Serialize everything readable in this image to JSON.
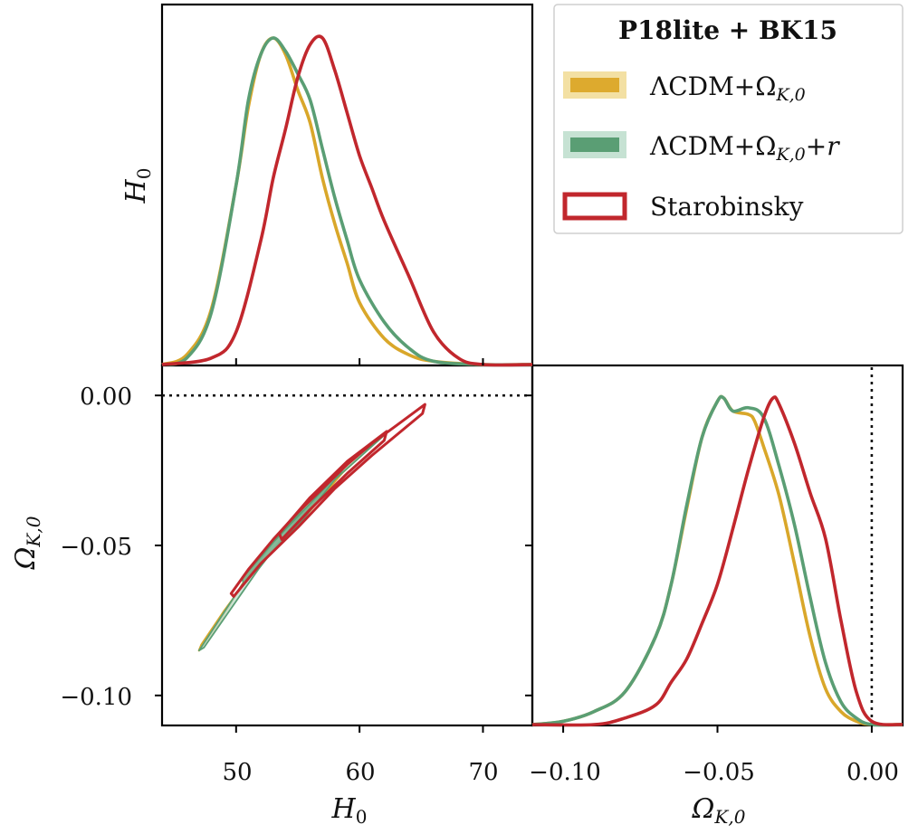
{
  "chart_data": [
    {
      "panel": "top-left",
      "type": "line",
      "ylabel": "H₀",
      "xlim": [
        44,
        74
      ],
      "series": [
        {
          "name": "ΛCDM+Ω_K,0",
          "x": [
            44,
            46,
            48,
            50,
            51,
            52,
            53,
            54,
            55,
            56,
            57,
            58,
            59,
            60,
            62,
            64,
            66,
            70,
            74
          ],
          "y": [
            0,
            0.03,
            0.17,
            0.55,
            0.79,
            0.95,
            1.0,
            0.95,
            0.84,
            0.74,
            0.57,
            0.43,
            0.31,
            0.19,
            0.08,
            0.03,
            0.01,
            0,
            0
          ]
        },
        {
          "name": "ΛCDM+Ω_K,0+r",
          "x": [
            44,
            46,
            48,
            50,
            51,
            52,
            53,
            54,
            55,
            56,
            57,
            58,
            59,
            60,
            62,
            64,
            66,
            70,
            74
          ],
          "y": [
            0,
            0.02,
            0.16,
            0.55,
            0.81,
            0.95,
            1.0,
            0.96,
            0.89,
            0.81,
            0.66,
            0.51,
            0.38,
            0.26,
            0.13,
            0.05,
            0.01,
            0,
            0
          ]
        },
        {
          "name": "Starobinsky",
          "x": [
            44,
            48,
            50,
            52,
            53,
            54,
            55,
            56,
            57,
            58,
            59,
            60,
            61,
            62,
            64,
            66,
            68,
            70,
            74
          ],
          "y": [
            0,
            0.02,
            0.1,
            0.38,
            0.57,
            0.72,
            0.88,
            0.98,
            1.0,
            0.9,
            0.77,
            0.64,
            0.54,
            0.44,
            0.27,
            0.1,
            0.02,
            0,
            0
          ]
        }
      ]
    },
    {
      "panel": "bottom-left",
      "type": "contour",
      "xlabel": "H₀",
      "ylabel": "Ω_K,0",
      "xlim": [
        44,
        74
      ],
      "ylim": [
        -0.11,
        0.01
      ],
      "xticks": [
        50,
        60,
        70
      ],
      "yticks": [
        0.0,
        -0.05,
        -0.1
      ],
      "reference_line": {
        "orientation": "horizontal",
        "value": 0.0,
        "style": "dotted"
      },
      "contours": [
        {
          "series": "ΛCDM+Ω_K,0",
          "level": "95%",
          "polygon": [
            [
              47.0,
              -0.085
            ],
            [
              48.6,
              -0.076
            ],
            [
              50.5,
              -0.063
            ],
            [
              53.0,
              -0.049
            ],
            [
              56.0,
              -0.036
            ],
            [
              59.0,
              -0.024
            ],
            [
              62.3,
              -0.012
            ],
            [
              62.0,
              -0.013
            ],
            [
              58.0,
              -0.028
            ],
            [
              55.0,
              -0.041
            ],
            [
              51.5,
              -0.058
            ],
            [
              49.0,
              -0.072
            ],
            [
              47.2,
              -0.083
            ]
          ]
        },
        {
          "series": "ΛCDM+Ω_K,0",
          "level": "68%",
          "polygon": [
            [
              50.5,
              -0.061
            ],
            [
              53.0,
              -0.049
            ],
            [
              56.0,
              -0.037
            ],
            [
              59.0,
              -0.023
            ],
            [
              58.8,
              -0.025
            ],
            [
              55.5,
              -0.041
            ],
            [
              52.5,
              -0.054
            ],
            [
              50.6,
              -0.063
            ]
          ]
        },
        {
          "series": "ΛCDM+Ω_K,0+r",
          "level": "95%",
          "polygon": [
            [
              47.0,
              -0.085
            ],
            [
              48.6,
              -0.075
            ],
            [
              50.5,
              -0.063
            ],
            [
              53.0,
              -0.049
            ],
            [
              56.0,
              -0.035
            ],
            [
              59.0,
              -0.023
            ],
            [
              62.3,
              -0.012
            ],
            [
              61.8,
              -0.014
            ],
            [
              58.0,
              -0.028
            ],
            [
              55.0,
              -0.041
            ],
            [
              51.8,
              -0.058
            ],
            [
              49.6,
              -0.071
            ],
            [
              47.4,
              -0.084
            ]
          ]
        },
        {
          "series": "ΛCDM+Ω_K,0+r",
          "level": "68%",
          "polygon": [
            [
              50.5,
              -0.061
            ],
            [
              53.0,
              -0.049
            ],
            [
              56.0,
              -0.036
            ],
            [
              59.0,
              -0.023
            ],
            [
              58.6,
              -0.025
            ],
            [
              55.5,
              -0.041
            ],
            [
              52.5,
              -0.054
            ],
            [
              50.6,
              -0.063
            ]
          ]
        },
        {
          "series": "Starobinsky",
          "level": "95%",
          "polygon": [
            [
              49.6,
              -0.066
            ],
            [
              51.0,
              -0.058
            ],
            [
              53.0,
              -0.048
            ],
            [
              55.0,
              -0.039
            ],
            [
              57.0,
              -0.031
            ],
            [
              59.0,
              -0.023
            ],
            [
              61.0,
              -0.016
            ],
            [
              63.0,
              -0.01
            ],
            [
              65.3,
              -0.003
            ],
            [
              65.1,
              -0.006
            ],
            [
              61.0,
              -0.02
            ],
            [
              58.0,
              -0.031
            ],
            [
              55.0,
              -0.044
            ],
            [
              52.0,
              -0.056
            ],
            [
              49.8,
              -0.067
            ]
          ]
        },
        {
          "series": "Starobinsky",
          "level": "68%",
          "polygon": [
            [
              53.5,
              -0.046
            ],
            [
              56.0,
              -0.034
            ],
            [
              59.0,
              -0.022
            ],
            [
              62.2,
              -0.012
            ],
            [
              62.0,
              -0.015
            ],
            [
              59.0,
              -0.026
            ],
            [
              56.0,
              -0.038
            ],
            [
              53.7,
              -0.048
            ]
          ]
        }
      ]
    },
    {
      "panel": "bottom-right",
      "type": "line",
      "xlabel": "Ω_K,0",
      "xlim": [
        -0.11,
        0.01
      ],
      "xticks": [
        -0.1,
        -0.05,
        0.0
      ],
      "reference_line": {
        "orientation": "vertical",
        "value": 0.0,
        "style": "dotted"
      },
      "series": [
        {
          "name": "ΛCDM+Ω_K,0",
          "x": [
            -0.11,
            -0.1,
            -0.09,
            -0.08,
            -0.07,
            -0.065,
            -0.06,
            -0.055,
            -0.05,
            -0.048,
            -0.045,
            -0.04,
            -0.038,
            -0.035,
            -0.03,
            -0.025,
            -0.02,
            -0.015,
            -0.01,
            -0.005,
            0.0,
            0.01
          ],
          "y": [
            0,
            0.01,
            0.04,
            0.1,
            0.27,
            0.43,
            0.66,
            0.88,
            0.99,
            1.0,
            0.96,
            0.95,
            0.93,
            0.85,
            0.7,
            0.49,
            0.27,
            0.11,
            0.04,
            0.01,
            0,
            0
          ]
        },
        {
          "name": "ΛCDM+Ω_K,0+r",
          "x": [
            -0.11,
            -0.1,
            -0.09,
            -0.08,
            -0.07,
            -0.065,
            -0.06,
            -0.055,
            -0.05,
            -0.048,
            -0.045,
            -0.04,
            -0.035,
            -0.03,
            -0.025,
            -0.02,
            -0.015,
            -0.01,
            -0.005,
            0.0,
            0.01
          ],
          "y": [
            0,
            0.01,
            0.04,
            0.1,
            0.27,
            0.43,
            0.67,
            0.88,
            0.99,
            1.0,
            0.96,
            0.97,
            0.94,
            0.79,
            0.61,
            0.39,
            0.19,
            0.07,
            0.02,
            0,
            0
          ]
        },
        {
          "name": "Starobinsky",
          "x": [
            -0.11,
            -0.09,
            -0.08,
            -0.07,
            -0.065,
            -0.06,
            -0.055,
            -0.05,
            -0.045,
            -0.04,
            -0.035,
            -0.032,
            -0.03,
            -0.025,
            -0.02,
            -0.015,
            -0.01,
            -0.005,
            0.0,
            0.01
          ],
          "y": [
            0,
            0.0,
            0.02,
            0.06,
            0.13,
            0.2,
            0.31,
            0.43,
            0.6,
            0.78,
            0.94,
            1.0,
            0.98,
            0.86,
            0.71,
            0.57,
            0.32,
            0.1,
            0.01,
            0
          ]
        }
      ]
    }
  ],
  "legend": {
    "title": "P18lite + BK15",
    "entries": [
      {
        "label": "ΛCDM+Ω",
        "sub": "K,0",
        "suffix": ""
      },
      {
        "label": "ΛCDM+Ω",
        "sub": "K,0",
        "suffix": "+r"
      },
      {
        "label": "Starobinsky",
        "sub": "",
        "suffix": ""
      }
    ]
  },
  "axis_text": {
    "top_left_ylabel": "H",
    "top_left_ylabel_sub": "0",
    "bottom_left_xlabel": "H",
    "bottom_left_xlabel_sub": "0",
    "bottom_left_ylabel": "Ω",
    "bottom_left_ylabel_sub": "K,0",
    "bottom_right_xlabel": "Ω",
    "bottom_right_xlabel_sub": "K,0"
  },
  "tick_labels": {
    "h0": [
      "50",
      "60",
      "70"
    ],
    "omega_y": [
      "0.00",
      "−0.05",
      "−0.10"
    ],
    "omega_x": [
      "−0.10",
      "−0.05",
      "0.00"
    ]
  },
  "colors": {
    "lcdm_line": "#D9A72A",
    "lcdm_fill": "#F3E0A3",
    "lcdm_inner": "#DDAA2E",
    "lcdmr_line": "#5A9E74",
    "lcdmr_fill": "#C6E2D3",
    "lcdmr_inner": "#7FB595",
    "staro_line": "#C1272D"
  }
}
